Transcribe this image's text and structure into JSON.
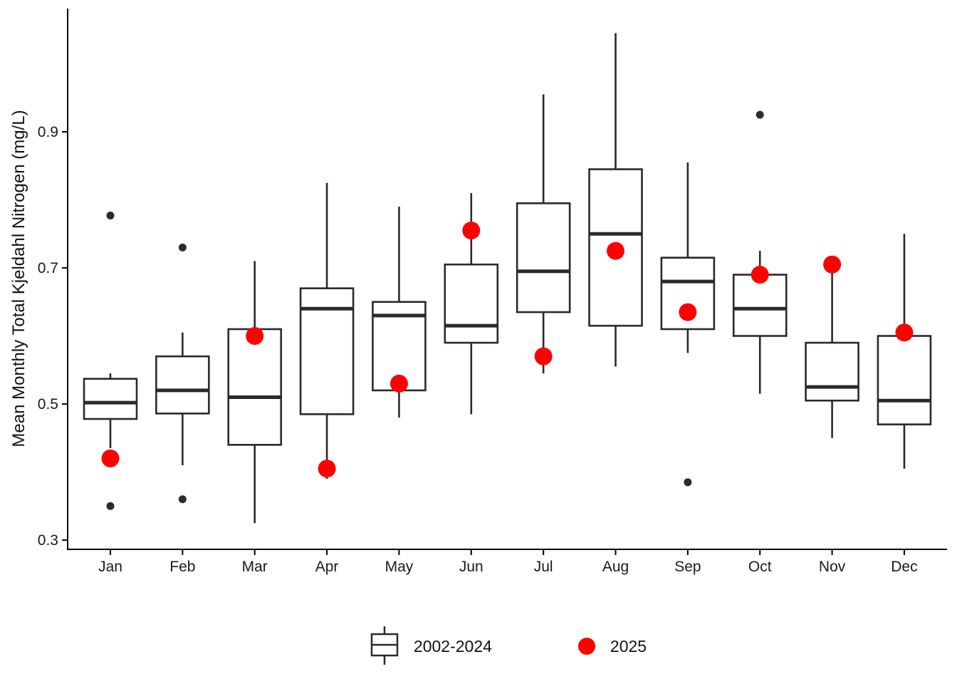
{
  "chart": {
    "legend": {
      "box_label": "2002-2024",
      "dot_label": "2025"
    }
  },
  "chart_data": {
    "type": "boxplot",
    "title": "",
    "xlabel": "",
    "ylabel": "Mean Monthly Total Kjeldahl Nitrogen (mg/L)",
    "categories": [
      "Jan",
      "Feb",
      "Mar",
      "Apr",
      "May",
      "Jun",
      "Jul",
      "Aug",
      "Sep",
      "Oct",
      "Nov",
      "Dec"
    ],
    "y_ticks": [
      0.3,
      0.5,
      0.7,
      0.9
    ],
    "ylim": [
      0.28,
      1.07
    ],
    "grid": false,
    "legend_position": "bottom",
    "colors": {
      "box_stroke": "#2a2a2a",
      "box_fill": "#ffffff",
      "outlier": "#2b2b2b",
      "point_2025": "#ff0000",
      "axis": "#000000",
      "text": "#1a1a1a"
    },
    "series": [
      {
        "name": "2002-2024",
        "type": "box",
        "boxes": [
          {
            "month": "Jan",
            "low": 0.435,
            "q1": 0.478,
            "median": 0.502,
            "q3": 0.537,
            "high": 0.545,
            "outliers": [
              0.777,
              0.35
            ]
          },
          {
            "month": "Feb",
            "low": 0.41,
            "q1": 0.486,
            "median": 0.52,
            "q3": 0.57,
            "high": 0.605,
            "outliers": [
              0.73,
              0.36
            ]
          },
          {
            "month": "Mar",
            "low": 0.325,
            "q1": 0.44,
            "median": 0.51,
            "q3": 0.61,
            "high": 0.71,
            "outliers": []
          },
          {
            "month": "Apr",
            "low": 0.39,
            "q1": 0.485,
            "median": 0.64,
            "q3": 0.67,
            "high": 0.825,
            "outliers": []
          },
          {
            "month": "May",
            "low": 0.48,
            "q1": 0.52,
            "median": 0.63,
            "q3": 0.65,
            "high": 0.79,
            "outliers": []
          },
          {
            "month": "Jun",
            "low": 0.485,
            "q1": 0.59,
            "median": 0.615,
            "q3": 0.705,
            "high": 0.81,
            "outliers": []
          },
          {
            "month": "Jul",
            "low": 0.545,
            "q1": 0.635,
            "median": 0.695,
            "q3": 0.795,
            "high": 0.955,
            "outliers": []
          },
          {
            "month": "Aug",
            "low": 0.555,
            "q1": 0.615,
            "median": 0.75,
            "q3": 0.845,
            "high": 1.045,
            "outliers": []
          },
          {
            "month": "Sep",
            "low": 0.575,
            "q1": 0.61,
            "median": 0.68,
            "q3": 0.715,
            "high": 0.855,
            "outliers": [
              0.385
            ]
          },
          {
            "month": "Oct",
            "low": 0.515,
            "q1": 0.6,
            "median": 0.64,
            "q3": 0.69,
            "high": 0.725,
            "outliers": [
              0.925
            ]
          },
          {
            "month": "Nov",
            "low": 0.45,
            "q1": 0.505,
            "median": 0.525,
            "q3": 0.59,
            "high": 0.7,
            "outliers": []
          },
          {
            "month": "Dec",
            "low": 0.405,
            "q1": 0.47,
            "median": 0.505,
            "q3": 0.6,
            "high": 0.75,
            "outliers": []
          }
        ]
      },
      {
        "name": "2025",
        "type": "point",
        "values": [
          0.42,
          null,
          0.6,
          0.405,
          0.53,
          0.755,
          0.57,
          0.725,
          0.635,
          0.69,
          0.705,
          0.605
        ]
      }
    ]
  }
}
